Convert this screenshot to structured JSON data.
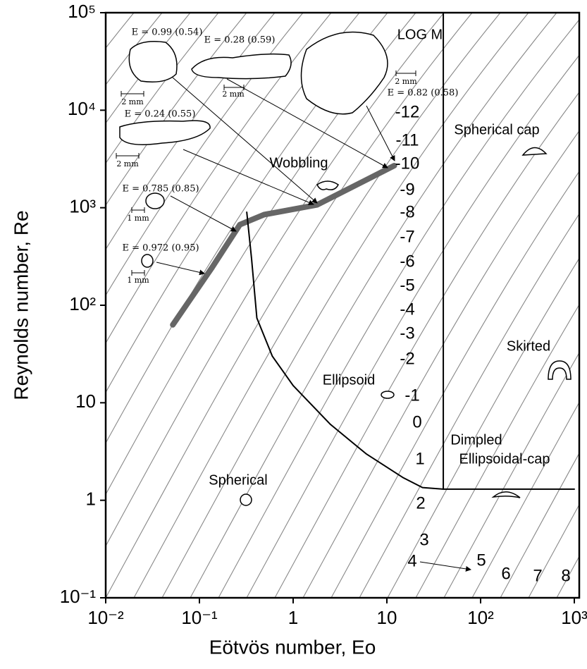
{
  "chart_data": {
    "type": "line",
    "xlabel": "Eötvös number, Eo",
    "ylabel": "Reynolds number, Re",
    "xscale": "log",
    "yscale": "log",
    "xlim": [
      0.01,
      1000
    ],
    "ylim": [
      0.1,
      100000
    ],
    "xticks": [
      {
        "value": 0.01,
        "label": "10⁻²"
      },
      {
        "value": 0.1,
        "label": "10⁻¹"
      },
      1,
      10,
      {
        "value": 100,
        "label": "10²"
      },
      {
        "value": 1000,
        "label": "10³"
      }
    ],
    "yticks": [
      {
        "value": 0.1,
        "label": "10⁻¹"
      },
      1,
      10,
      {
        "value": 100,
        "label": "10²"
      },
      {
        "value": 1000,
        "label": "10³"
      },
      {
        "value": 10000,
        "label": "10⁴"
      },
      {
        "value": 100000,
        "label": "10⁵"
      }
    ],
    "series": [
      {
        "color": "#666666",
        "x": [
          0.052,
          0.135,
          0.27,
          0.49,
          1.8,
          12
        ],
        "values": [
          63,
          240,
          670,
          850,
          1070,
          2700
        ]
      },
      {
        "color": "#000000",
        "x": [
          0.32,
          0.36,
          0.41,
          0.6,
          1,
          2.5,
          6,
          15,
          24,
          40,
          1000
        ],
        "values": [
          900,
          300,
          74,
          30,
          15,
          6,
          3,
          1.7,
          1.35,
          1.3,
          1.3
        ]
      },
      {
        "color": "#000000",
        "x": [
          40,
          40
        ],
        "values": [
          1.3,
          100000
        ]
      }
    ],
    "morton_title": "LOG M",
    "morton_labels": [
      "-12",
      "-11",
      "-10",
      "-9",
      "-8",
      "-7",
      "-6",
      "-5",
      "-4",
      "-3",
      "-2",
      "-1",
      "0",
      "1",
      "2",
      "3",
      "4",
      "5",
      "6",
      "7",
      "8"
    ],
    "regions": [
      "Spherical cap",
      "Wobbling",
      "Skirted",
      "Ellipsoid",
      "Dimpled",
      "Ellipsoidal-cap",
      "Spherical"
    ],
    "bubble_labels": [
      "E = 0.99 (0.54)",
      "E = 0.28 (0.59)",
      "E = 0.82 (0.58)",
      "E = 0.24 (0.55)",
      "E = 0.785 (0.85)",
      "E = 0.972 (0.95)"
    ],
    "scale_labels": [
      "2 mm",
      "2 mm",
      "2 mm",
      "2 mm",
      "1 mm",
      "1 mm"
    ]
  }
}
